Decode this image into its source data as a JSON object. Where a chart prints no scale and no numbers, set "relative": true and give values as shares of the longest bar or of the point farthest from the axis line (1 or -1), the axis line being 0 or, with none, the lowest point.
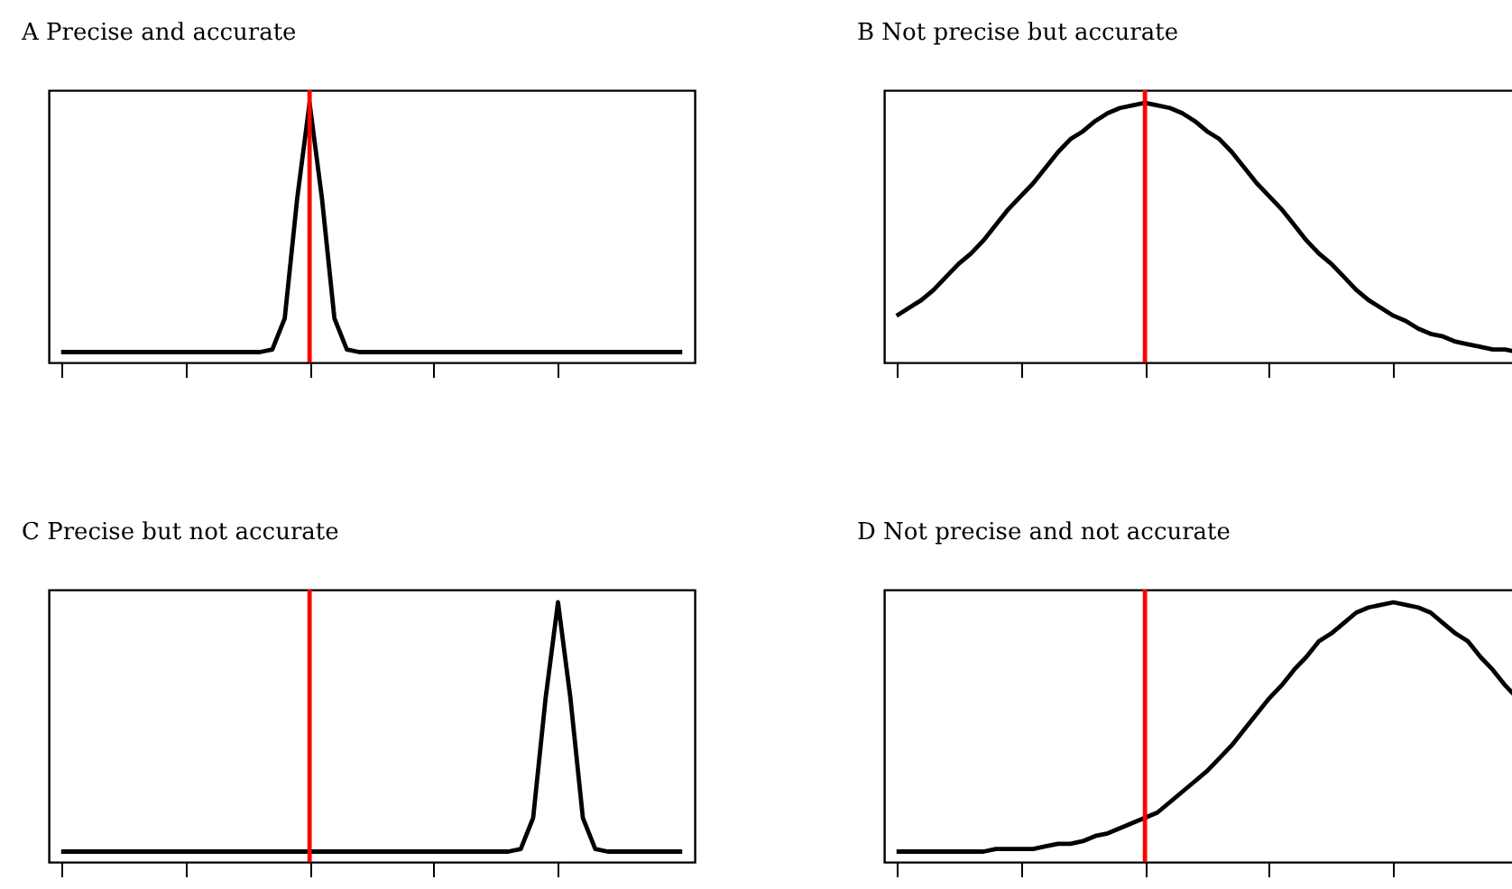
{
  "chart_data": [
    {
      "type": "line",
      "title": "A Precise and accurate",
      "relative": true,
      "grid": false,
      "categories": [
        null,
        null,
        null,
        null,
        null,
        null,
        null,
        null,
        null,
        null,
        null,
        null,
        null,
        null,
        null,
        null,
        null,
        null,
        null,
        null,
        null,
        null,
        null,
        null,
        null,
        null,
        null,
        null,
        null,
        null,
        null,
        null,
        null,
        null,
        null,
        null,
        null,
        null,
        null,
        null,
        null,
        null,
        null,
        null,
        null,
        null,
        null,
        null,
        null,
        null,
        null
      ],
      "series": [
        {
          "color": "#000000",
          "values": [
            0.04,
            0.04,
            0.04,
            0.04,
            0.04,
            0.04,
            0.04,
            0.04,
            0.04,
            0.04,
            0.04,
            0.04,
            0.04,
            0.04,
            0.04,
            0.04,
            0.04,
            0.05,
            0.17,
            0.63,
            1,
            0.63,
            0.17,
            0.05,
            0.04,
            0.04,
            0.04,
            0.04,
            0.04,
            0.04,
            0.04,
            0.04,
            0.04,
            0.04,
            0.04,
            0.04,
            0.04,
            0.04,
            0.04,
            0.04,
            0.04,
            0.04,
            0.04,
            0.04,
            0.04,
            0.04,
            0.04,
            0.04,
            0.04,
            0.04,
            0.04
          ]
        }
      ]
    },
    {
      "type": "line",
      "title": "B Not precise but accurate",
      "relative": true,
      "grid": false,
      "categories": [
        null,
        null,
        null,
        null,
        null,
        null,
        null,
        null,
        null,
        null,
        null,
        null,
        null,
        null,
        null,
        null,
        null,
        null,
        null,
        null,
        null,
        null,
        null,
        null,
        null,
        null,
        null,
        null,
        null,
        null,
        null,
        null,
        null,
        null,
        null,
        null,
        null,
        null,
        null,
        null,
        null,
        null,
        null,
        null,
        null,
        null,
        null,
        null,
        null,
        null,
        null
      ],
      "series": [
        {
          "color": "#000000",
          "values": [
            0.18,
            0.21,
            0.24,
            0.28,
            0.33,
            0.38,
            0.42,
            0.47,
            0.53,
            0.59,
            0.64,
            0.69,
            0.75,
            0.81,
            0.86,
            0.89,
            0.93,
            0.96,
            0.98,
            0.99,
            1,
            0.99,
            0.98,
            0.96,
            0.93,
            0.89,
            0.86,
            0.81,
            0.75,
            0.69,
            0.64,
            0.59,
            0.53,
            0.47,
            0.42,
            0.38,
            0.33,
            0.28,
            0.24,
            0.21,
            0.18,
            0.16,
            0.13,
            0.11,
            0.1,
            0.08,
            0.07,
            0.06,
            0.05,
            0.05,
            0.04
          ]
        }
      ]
    },
    {
      "type": "line",
      "title": "C Precise but not accurate",
      "relative": true,
      "grid": false,
      "categories": [
        null,
        null,
        null,
        null,
        null,
        null,
        null,
        null,
        null,
        null,
        null,
        null,
        null,
        null,
        null,
        null,
        null,
        null,
        null,
        null,
        null,
        null,
        null,
        null,
        null,
        null,
        null,
        null,
        null,
        null,
        null,
        null,
        null,
        null,
        null,
        null,
        null,
        null,
        null,
        null,
        null,
        null,
        null,
        null,
        null,
        null,
        null,
        null,
        null,
        null,
        null
      ],
      "series": [
        {
          "color": "#000000",
          "values": [
            0.04,
            0.04,
            0.04,
            0.04,
            0.04,
            0.04,
            0.04,
            0.04,
            0.04,
            0.04,
            0.04,
            0.04,
            0.04,
            0.04,
            0.04,
            0.04,
            0.04,
            0.04,
            0.04,
            0.04,
            0.04,
            0.04,
            0.04,
            0.04,
            0.04,
            0.04,
            0.04,
            0.04,
            0.04,
            0.04,
            0.04,
            0.04,
            0.04,
            0.04,
            0.04,
            0.04,
            0.04,
            0.05,
            0.17,
            0.63,
            1,
            0.63,
            0.17,
            0.05,
            0.04,
            0.04,
            0.04,
            0.04,
            0.04,
            0.04,
            0.04
          ]
        }
      ]
    },
    {
      "type": "line",
      "title": "D Not precise and not accurate",
      "relative": true,
      "grid": false,
      "categories": [
        null,
        null,
        null,
        null,
        null,
        null,
        null,
        null,
        null,
        null,
        null,
        null,
        null,
        null,
        null,
        null,
        null,
        null,
        null,
        null,
        null,
        null,
        null,
        null,
        null,
        null,
        null,
        null,
        null,
        null,
        null,
        null,
        null,
        null,
        null,
        null,
        null,
        null,
        null,
        null,
        null,
        null,
        null,
        null,
        null,
        null,
        null,
        null,
        null,
        null,
        null
      ],
      "series": [
        {
          "color": "#000000",
          "values": [
            0.04,
            0.04,
            0.04,
            0.04,
            0.04,
            0.04,
            0.04,
            0.04,
            0.05,
            0.05,
            0.05,
            0.05,
            0.06,
            0.07,
            0.07,
            0.08,
            0.1,
            0.11,
            0.13,
            0.15,
            0.17,
            0.19,
            0.23,
            0.27,
            0.31,
            0.35,
            0.4,
            0.45,
            0.51,
            0.57,
            0.63,
            0.68,
            0.74,
            0.79,
            0.85,
            0.88,
            0.92,
            0.96,
            0.98,
            0.99,
            1,
            0.99,
            0.98,
            0.96,
            0.92,
            0.88,
            0.85,
            0.79,
            0.74,
            0.68,
            0.63
          ]
        }
      ]
    }
  ]
}
